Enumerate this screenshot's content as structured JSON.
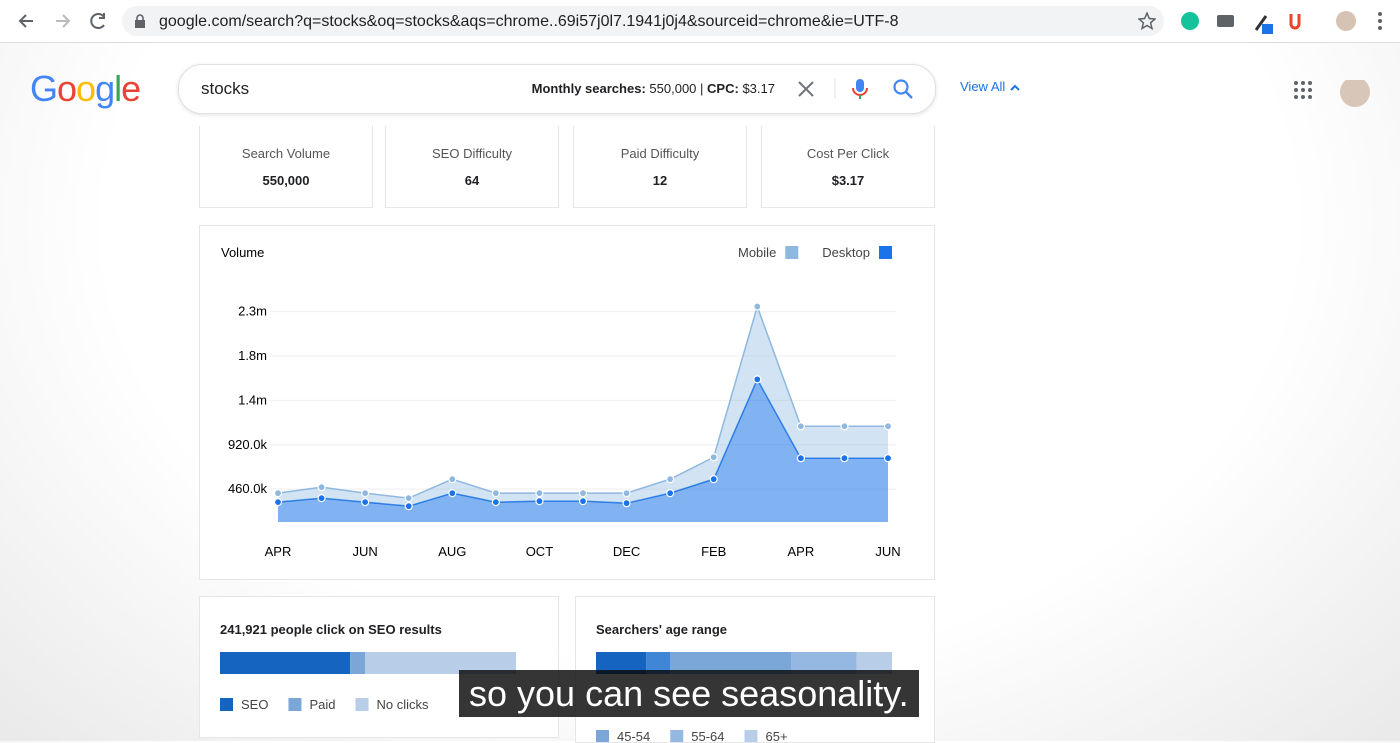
{
  "browser": {
    "url": "google.com/search?q=stocks&oq=stocks&aqs=chrome..69i57j0l7.1941j0j4&sourceid=chrome&ie=UTF-8"
  },
  "search": {
    "logo": "Google",
    "query": "stocks",
    "monthly_label": "Monthly searches:",
    "monthly_value": "550,000",
    "separator": "|",
    "cpc_label": "CPC:",
    "cpc_value": "$3.17",
    "view_all": "View All"
  },
  "metrics": [
    {
      "label": "Search Volume",
      "value": "550,000"
    },
    {
      "label": "SEO Difficulty",
      "value": "64"
    },
    {
      "label": "Paid Difficulty",
      "value": "12"
    },
    {
      "label": "Cost Per Click",
      "value": "$3.17"
    }
  ],
  "chart_data": {
    "type": "area",
    "title": "Volume",
    "categories": [
      "APR",
      null,
      "JUN",
      null,
      "AUG",
      null,
      "OCT",
      null,
      "DEC",
      null,
      "FEB",
      null,
      "APR",
      null,
      "JUN"
    ],
    "series": [
      {
        "name": "Mobile",
        "color": "#8fb8e0",
        "values": [
          93000,
          114000,
          93000,
          83000,
          145000,
          93000,
          83000,
          83000,
          104000,
          145000,
          227000,
          754000,
          331000,
          331000,
          331000
        ]
      },
      {
        "name": "Desktop",
        "color": "#1a73e8",
        "values": [
          326000,
          367000,
          326000,
          284000,
          419000,
          326000,
          336000,
          336000,
          315000,
          419000,
          564000,
          1598000,
          781000,
          781000,
          781000
        ]
      }
    ],
    "stacked": true,
    "ylim": [
      120000,
      2420000
    ],
    "yticks": [
      {
        "value": 460000,
        "label": "460.0k"
      },
      {
        "value": 920000,
        "label": "920.0k"
      },
      {
        "value": 1380000,
        "label": "1.4m"
      },
      {
        "value": 1840000,
        "label": "1.8m"
      },
      {
        "value": 2300000,
        "label": "2.3m"
      }
    ],
    "grid": true,
    "legend": "top-right"
  },
  "seo_card": {
    "title": "241,921 people click on SEO results",
    "segments": [
      {
        "name": "SEO",
        "color": "#1565c0",
        "value": 44
      },
      {
        "name": "Paid",
        "color": "#7aa7d8",
        "value": 5
      },
      {
        "name": "No clicks",
        "color": "#b7cde8",
        "value": 51
      }
    ]
  },
  "age_card": {
    "title": "Searchers' age range",
    "segments": [
      {
        "name": null,
        "color": "#1565c0",
        "value": 17
      },
      {
        "name": null,
        "color": "#3f86d6",
        "value": 8
      },
      {
        "name": "45-54",
        "color": "#7aa7d8",
        "value": 41
      },
      {
        "name": "55-64",
        "color": "#94b8e2",
        "value": 22
      },
      {
        "name": "65+",
        "color": "#b7cde8",
        "value": 12
      }
    ]
  },
  "caption": "so you can see seasonality."
}
